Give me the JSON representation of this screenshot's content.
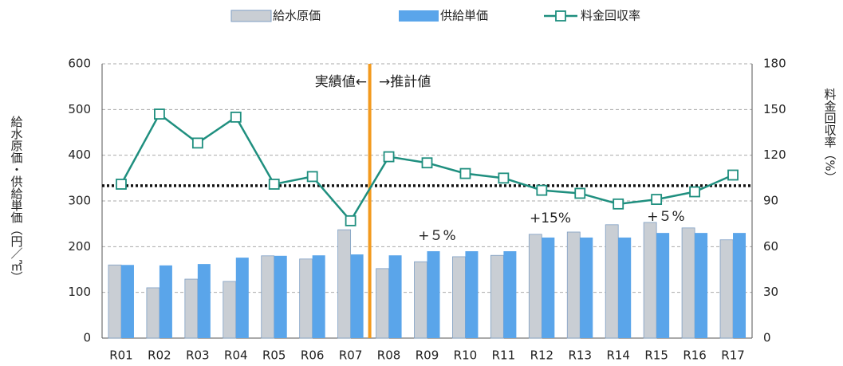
{
  "chart_data": {
    "type": "bar_line",
    "categories": [
      "R01",
      "R02",
      "R03",
      "R04",
      "R05",
      "R06",
      "R07",
      "R08",
      "R09",
      "R10",
      "R11",
      "R12",
      "R13",
      "R14",
      "R15",
      "R16",
      "R17"
    ],
    "series": [
      {
        "name": "給水原価",
        "color": "#c9ced4",
        "type": "bar",
        "values": [
          160,
          110,
          129,
          124,
          180,
          173,
          237,
          152,
          167,
          178,
          181,
          227,
          232,
          248,
          253,
          241,
          215
        ]
      },
      {
        "name": "供給単価",
        "color": "#5aa5ea",
        "type": "bar",
        "values": [
          160,
          159,
          162,
          176,
          180,
          181,
          183,
          181,
          190,
          190,
          190,
          220,
          220,
          220,
          230,
          230,
          230
        ]
      },
      {
        "name": "料金回収率",
        "color": "#1f8f7f",
        "type": "line",
        "axis": "y2",
        "values": [
          101,
          147,
          128,
          145,
          101,
          106,
          77,
          119,
          115,
          108,
          105,
          97,
          95,
          88,
          91,
          96,
          107
        ]
      }
    ],
    "ylabel": "給水原価・供給単価（円／㎥）",
    "y2label": "料金回収率（%）",
    "ylim": [
      0,
      600
    ],
    "yticks": [
      0,
      100,
      200,
      300,
      400,
      500,
      600
    ],
    "y2lim": [
      0,
      180
    ],
    "y2ticks": [
      0,
      30,
      60,
      90,
      120,
      150,
      180
    ],
    "reference_line": {
      "value": 100,
      "axis": "y2"
    },
    "annotations": [
      "実績値←",
      "→推計値",
      "+５%",
      "+15%",
      "+５%"
    ],
    "grid": true,
    "legend": "top"
  }
}
